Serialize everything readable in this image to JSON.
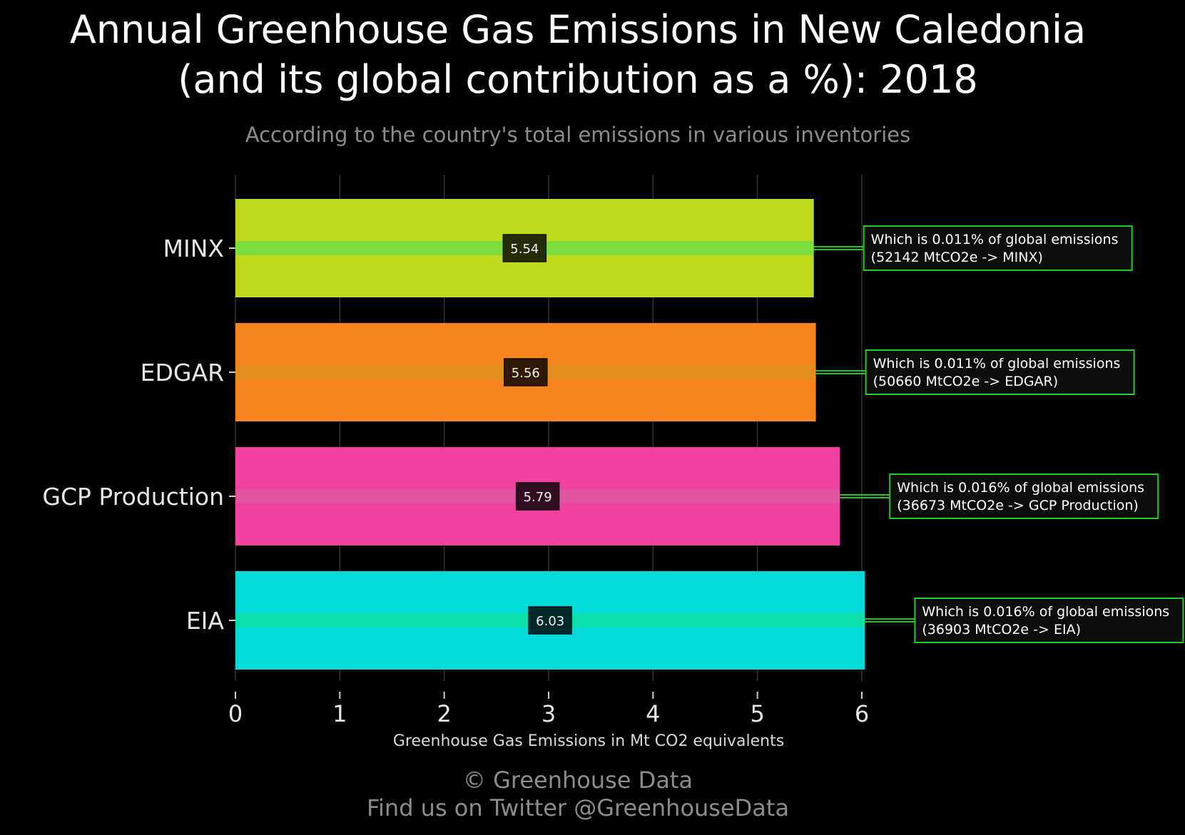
{
  "chart_data": {
    "type": "bar",
    "orientation": "horizontal",
    "title_line1": "Annual Greenhouse Gas Emissions in New Caledonia",
    "title_line2": "(and its global contribution as a %): 2018",
    "subtitle": "According to the country's total emissions in various inventories",
    "xlabel": "Greenhouse Gas Emissions in Mt CO2 equivalents",
    "ylabel": "",
    "xlim": [
      0,
      6
    ],
    "x_ticks": [
      "0",
      "1",
      "2",
      "3",
      "4",
      "5",
      "6"
    ],
    "grid": true,
    "categories": [
      "MINX",
      "EDGAR",
      "GCP Production",
      "EIA"
    ],
    "values": [
      5.54,
      5.56,
      5.79,
      6.03
    ],
    "value_labels": [
      "5.54",
      "5.56",
      "5.79",
      "6.03"
    ],
    "colors": [
      "#c0d91c",
      "#f8841f",
      "#f242a0",
      "#04d9d9"
    ],
    "annotations": [
      {
        "line1": "Which is 0.011% of global emissions",
        "line2": "(52142 MtCO2e -> MINX)"
      },
      {
        "line1": "Which is 0.011% of global emissions",
        "line2": "(50660 MtCO2e -> EDGAR)"
      },
      {
        "line1": "Which is 0.016% of global emissions",
        "line2": "(36673 MtCO2e -> GCP Production)"
      },
      {
        "line1": "Which is 0.016% of global emissions",
        "line2": "(36903 MtCO2e -> EIA)"
      }
    ]
  },
  "footer": {
    "copyright": "© Greenhouse Data",
    "twitter": "Find us on Twitter @GreenhouseData"
  },
  "colors": {
    "background": "#000000",
    "annotation_border": "#22cc22",
    "connector": "#33ff33",
    "grid": "#333333"
  }
}
